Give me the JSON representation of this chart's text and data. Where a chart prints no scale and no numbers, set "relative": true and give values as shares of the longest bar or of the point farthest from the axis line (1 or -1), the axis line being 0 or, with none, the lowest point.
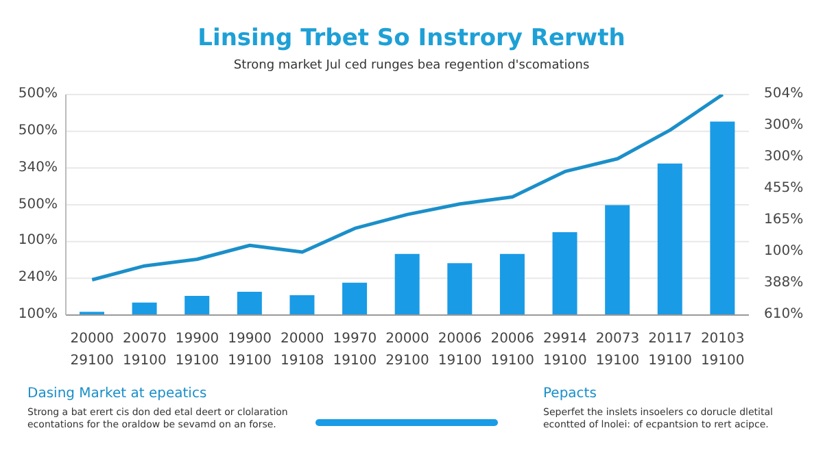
{
  "chart_data": {
    "type": "bar",
    "relative": true,
    "title": "Linsing Trbet So Instrory Rerwth",
    "subtitle": "Strong market Jul ced runges bea regention d'scomations",
    "categories": [
      "20000\n29100",
      "20070\n19100",
      "19900\n19100",
      "19900\n19100",
      "20000\n19108",
      "19970\n19100",
      "20000\n29100",
      "20006\n19100",
      "20006\n19100",
      "29914\n19100",
      "20073\n19100",
      "20117\n19100",
      "20103\n19100"
    ],
    "series": [
      {
        "color": "#1a9be6",
        "values": [
          0.017,
          0.065,
          0.099,
          0.12,
          0.103,
          0.167,
          0.316,
          0.268,
          0.316,
          0.428,
          0.568,
          0.783,
          1
        ]
      },
      {
        "type": "line",
        "axis": "y2",
        "color": "#1b8fc9",
        "values": [
          0.16,
          0.223,
          0.253,
          0.316,
          0.286,
          0.393,
          0.456,
          0.504,
          0.536,
          0.651,
          0.709,
          0.839,
          1
        ]
      }
    ],
    "grid": "y",
    "marker": "none",
    "line_style": "solid",
    "annotations": [
      "Dasing Market at epeatics",
      "Strong a bat erert cis don ded etal deert or clolaration econtations for the oraldow be sevamd on an forse.",
      "Pepacts",
      "Seperfet the inslets insoelers co dorucle dletital econtted of lnolei: of ecpantsion to rert acipce.",
      "100%",
      "240%",
      "100%",
      "500%",
      "340%",
      "500%",
      "500%",
      "610%",
      "388%",
      "100%",
      "165%",
      "455%",
      "300%",
      "300%",
      "504%"
    ]
  }
}
